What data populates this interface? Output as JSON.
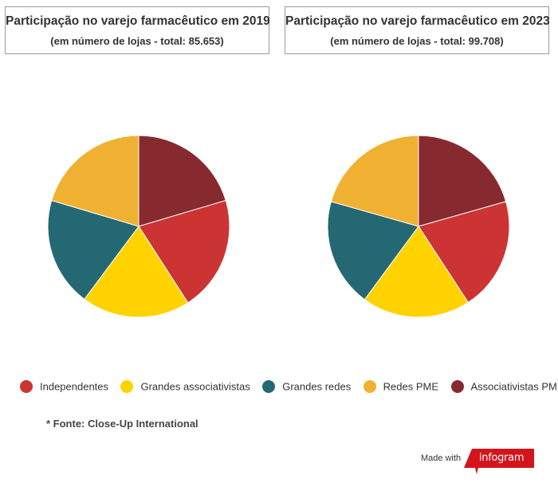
{
  "charts": [
    {
      "title": "Participação no varejo farmacêutico em 2019",
      "subtitle": "(em número de lojas - total: 85.653)"
    },
    {
      "title": "Participação no varejo farmacêutico em 2023",
      "subtitle": "(em número de lojas - total: 99.708)"
    }
  ],
  "legend": [
    {
      "label": "Independentes",
      "color": "#cc3333"
    },
    {
      "label": "Grandes associativistas",
      "color": "#ffd200"
    },
    {
      "label": "Grandes redes",
      "color": "#246873"
    },
    {
      "label": "Redes PME",
      "color": "#f0b032"
    },
    {
      "label": "Associativistas PME",
      "color": "#872a30"
    }
  ],
  "source": "* Fonte: Close-Up International",
  "footer": {
    "made_with": "Made with",
    "brand": "infogram",
    "brand_color": "#d4141c"
  },
  "chart_data": [
    {
      "type": "pie",
      "title": "Participação no varejo farmacêutico em 2019",
      "subtitle": "(em número de lojas - total: 85.653)",
      "start_series": "Associativistas PME",
      "direction": "clockwise",
      "series": [
        {
          "name": "Independentes",
          "color": "#cc3333",
          "percent": 20.5
        },
        {
          "name": "Grandes associativistas",
          "color": "#ffd200",
          "percent": 19.3
        },
        {
          "name": "Grandes redes",
          "color": "#246873",
          "percent": 19.4
        },
        {
          "name": "Redes PME",
          "color": "#f0b032",
          "percent": 20.4
        },
        {
          "name": "Associativistas PME",
          "color": "#872a30",
          "percent": 20.4
        }
      ]
    },
    {
      "type": "pie",
      "title": "Participação no varejo farmacêutico em 2023",
      "subtitle": "(em número de lojas - total: 99.708)",
      "start_series": "Associativistas PME",
      "direction": "clockwise",
      "series": [
        {
          "name": "Independentes",
          "color": "#cc3333",
          "percent": 20.2
        },
        {
          "name": "Grandes associativistas",
          "color": "#ffd200",
          "percent": 19.3
        },
        {
          "name": "Grandes redes",
          "color": "#246873",
          "percent": 19.3
        },
        {
          "name": "Redes PME",
          "color": "#f0b032",
          "percent": 20.6
        },
        {
          "name": "Associativistas PME",
          "color": "#872a30",
          "percent": 20.6
        }
      ]
    }
  ]
}
